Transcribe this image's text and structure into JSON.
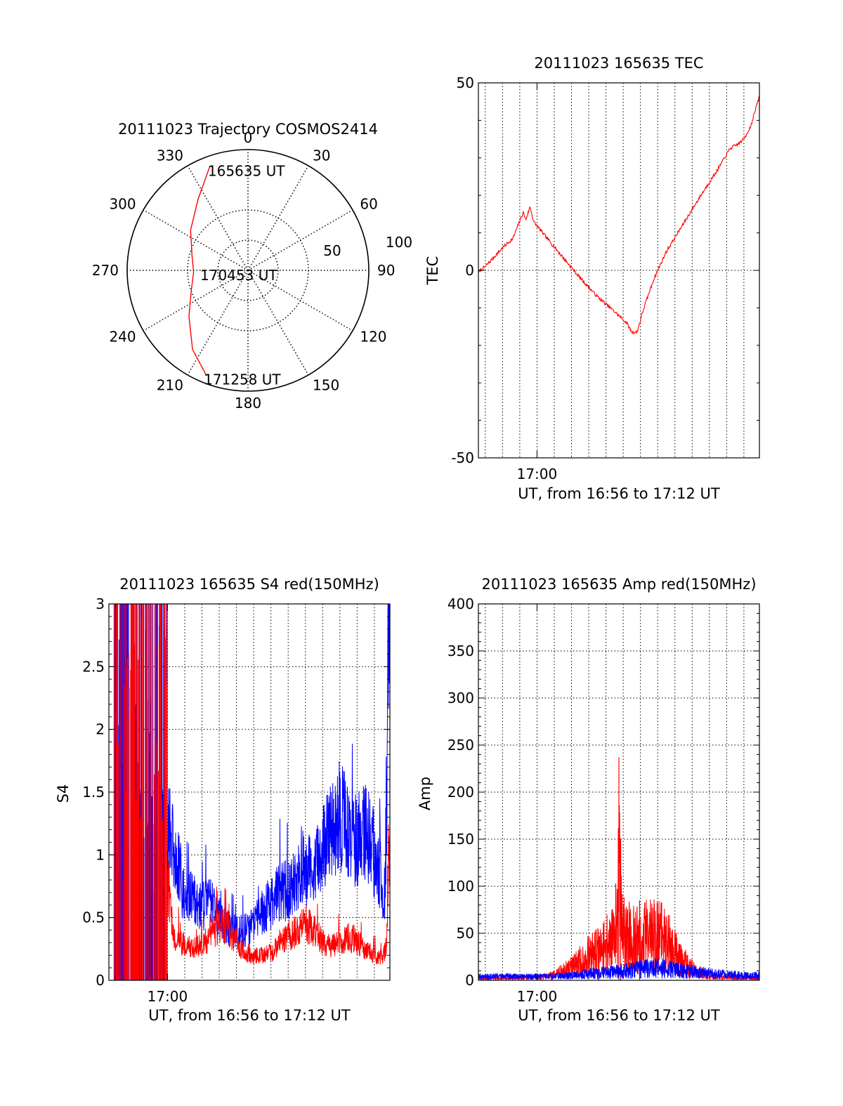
{
  "colors": {
    "red": "#ff0000",
    "blue": "#0000ff",
    "axis": "#000000",
    "grid": "#000000",
    "background": "#ffffff"
  },
  "chart_data": [
    {
      "id": "trajectory",
      "type": "polar-line",
      "title": "20111023 Trajectory COSMOS2414",
      "angle_labels": [
        "0",
        "30",
        "60",
        "90",
        "120",
        "150",
        "180",
        "210",
        "240",
        "270",
        "300",
        "330"
      ],
      "radius_labels": [
        "50",
        "100"
      ],
      "rlim": [
        0,
        100
      ],
      "direction": "clockwise, 0 at top",
      "grid": true,
      "annotations": [
        {
          "text": "165635 UT",
          "azimuth": 340,
          "r": 92
        },
        {
          "text": "170453 UT",
          "azimuth": 268,
          "r": 42
        },
        {
          "text": "171258 UT",
          "azimuth": 202,
          "r": 93
        }
      ],
      "series": [
        {
          "color": "red",
          "points": [
            {
              "az": 340,
              "r": 92
            },
            {
              "az": 325,
              "r": 72
            },
            {
              "az": 305,
              "r": 58
            },
            {
              "az": 285,
              "r": 48
            },
            {
              "az": 268,
              "r": 45
            },
            {
              "az": 250,
              "r": 50
            },
            {
              "az": 232,
              "r": 62
            },
            {
              "az": 215,
              "r": 80
            },
            {
              "az": 202,
              "r": 93
            }
          ]
        }
      ]
    },
    {
      "id": "tec",
      "type": "line",
      "title": "20111023 165635 TEC",
      "xlabel": "UT, from 16:56 to 17:12 UT",
      "ylabel": "TEC",
      "xlim": [
        56.6,
        72.9
      ],
      "ylim": [
        -50,
        50
      ],
      "y_ticks": [
        50,
        0,
        -50
      ],
      "x_ticks": [
        {
          "value": 60,
          "label": "17:00"
        }
      ],
      "grid": true,
      "series": [
        {
          "color": "red",
          "points": [
            [
              56.6,
              -0.5
            ],
            [
              57.0,
              1.0
            ],
            [
              57.5,
              3.5
            ],
            [
              58.0,
              6.0
            ],
            [
              58.6,
              8.5
            ],
            [
              58.9,
              12.0
            ],
            [
              59.2,
              15.5
            ],
            [
              59.35,
              13.5
            ],
            [
              59.6,
              17.0
            ],
            [
              59.8,
              13.0
            ],
            [
              60.5,
              9.0
            ],
            [
              61.5,
              3.5
            ],
            [
              62.5,
              -2.0
            ],
            [
              63.5,
              -7.0
            ],
            [
              64.5,
              -11.0
            ],
            [
              65.2,
              -14.0
            ],
            [
              65.5,
              -16.5
            ],
            [
              65.8,
              -16.5
            ],
            [
              66.2,
              -10.0
            ],
            [
              66.8,
              -2.0
            ],
            [
              67.5,
              5.0
            ],
            [
              68.5,
              12.5
            ],
            [
              69.5,
              20.0
            ],
            [
              70.5,
              27.0
            ],
            [
              71.2,
              32.5
            ],
            [
              71.6,
              33.5
            ],
            [
              72.0,
              35.0
            ],
            [
              72.4,
              38.5
            ],
            [
              72.9,
              46.5
            ]
          ]
        }
      ]
    },
    {
      "id": "s4",
      "type": "line",
      "title": "20111023 165635 S4 red(150MHz)",
      "xlabel": "UT, from 16:56 to 17:12 UT",
      "ylabel": "S4",
      "xlim": [
        56.6,
        72.9
      ],
      "ylim": [
        0,
        3
      ],
      "y_ticks": [
        {
          "value": 0,
          "label": "0"
        },
        {
          "value": 0.5,
          "label": "0.5"
        },
        {
          "value": 1,
          "label": "1"
        },
        {
          "value": 1.5,
          "label": "1.5"
        },
        {
          "value": 2,
          "label": "2"
        },
        {
          "value": 2.5,
          "label": "2.5"
        },
        {
          "value": 3,
          "label": "3"
        }
      ],
      "x_ticks": [
        {
          "value": 60,
          "label": "17:00"
        }
      ],
      "grid": true,
      "series": [
        {
          "color": "blue",
          "noise": [
            0.65,
            0.38,
            0.72,
            0.55,
            0.5
          ],
          "points": [
            [
              60.0,
              1.25
            ],
            [
              60.5,
              0.95
            ],
            [
              61.0,
              0.7
            ],
            [
              61.5,
              0.62
            ],
            [
              62.0,
              0.58
            ],
            [
              62.5,
              0.62
            ],
            [
              63.0,
              0.5
            ],
            [
              63.5,
              0.42
            ],
            [
              64.0,
              0.38
            ],
            [
              64.5,
              0.4
            ],
            [
              65.0,
              0.45
            ],
            [
              65.5,
              0.55
            ],
            [
              66.0,
              0.62
            ],
            [
              66.5,
              0.7
            ],
            [
              67.0,
              0.72
            ],
            [
              67.5,
              0.85
            ],
            [
              68.0,
              0.9
            ],
            [
              68.5,
              0.85
            ],
            [
              69.0,
              1.05
            ],
            [
              69.5,
              1.25
            ],
            [
              70.0,
              1.3
            ],
            [
              70.5,
              1.2
            ],
            [
              71.0,
              1.1
            ],
            [
              71.5,
              1.2
            ],
            [
              72.0,
              1.0
            ],
            [
              72.4,
              0.8
            ],
            [
              72.6,
              0.7
            ],
            [
              72.75,
              1.6
            ],
            [
              72.85,
              3.0
            ],
            [
              72.9,
              3.0
            ]
          ]
        },
        {
          "color": "red",
          "noise": [
            0.55,
            0.28,
            0.45,
            0.3,
            0.35
          ],
          "points": [
            [
              60.0,
              0.8
            ],
            [
              60.4,
              0.35
            ],
            [
              61.0,
              0.28
            ],
            [
              61.5,
              0.25
            ],
            [
              62.0,
              0.28
            ],
            [
              62.5,
              0.35
            ],
            [
              63.0,
              0.45
            ],
            [
              63.5,
              0.42
            ],
            [
              64.0,
              0.3
            ],
            [
              64.5,
              0.22
            ],
            [
              65.0,
              0.2
            ],
            [
              65.5,
              0.2
            ],
            [
              66.0,
              0.22
            ],
            [
              66.5,
              0.28
            ],
            [
              67.0,
              0.35
            ],
            [
              67.5,
              0.4
            ],
            [
              68.0,
              0.45
            ],
            [
              68.5,
              0.4
            ],
            [
              69.0,
              0.3
            ],
            [
              69.5,
              0.28
            ],
            [
              70.0,
              0.3
            ],
            [
              70.5,
              0.35
            ],
            [
              71.0,
              0.3
            ],
            [
              71.5,
              0.25
            ],
            [
              72.0,
              0.2
            ],
            [
              72.5,
              0.18
            ],
            [
              72.7,
              0.3
            ],
            [
              72.8,
              0.9
            ],
            [
              72.9,
              1.2
            ]
          ]
        }
      ]
    },
    {
      "id": "amp",
      "type": "line",
      "title": "20111023 165635 Amp red(150MHz)",
      "xlabel": "UT, from 16:56 to 17:12 UT",
      "ylabel": "Amp",
      "xlim": [
        56.6,
        72.9
      ],
      "ylim": [
        0,
        400
      ],
      "y_ticks": [
        0,
        50,
        100,
        150,
        200,
        250,
        300,
        350,
        400
      ],
      "x_ticks": [
        {
          "value": 60,
          "label": "17:00"
        }
      ],
      "grid": true,
      "series": [
        {
          "color": "red",
          "points": [
            [
              56.6,
              2
            ],
            [
              58.0,
              2
            ],
            [
              59.5,
              3
            ],
            [
              60.5,
              4
            ],
            [
              61.0,
              6
            ],
            [
              61.5,
              10
            ],
            [
              62.0,
              14
            ],
            [
              62.5,
              20
            ],
            [
              63.0,
              26
            ],
            [
              63.5,
              30
            ],
            [
              64.0,
              38
            ],
            [
              64.5,
              42
            ],
            [
              64.8,
              115
            ],
            [
              65.0,
              48
            ],
            [
              65.5,
              45
            ],
            [
              66.0,
              42
            ],
            [
              66.5,
              50
            ],
            [
              67.0,
              48
            ],
            [
              67.5,
              42
            ],
            [
              68.0,
              30
            ],
            [
              68.5,
              20
            ],
            [
              69.0,
              12
            ],
            [
              69.5,
              8
            ],
            [
              70.0,
              5
            ],
            [
              71.0,
              3
            ],
            [
              72.9,
              2
            ]
          ],
          "spikes": [
            [
              64.75,
              237
            ],
            [
              64.85,
              120
            ],
            [
              63.55,
              50
            ],
            [
              65.95,
              85
            ]
          ]
        },
        {
          "color": "blue",
          "points": [
            [
              56.6,
              4
            ],
            [
              58.0,
              4
            ],
            [
              60.0,
              4
            ],
            [
              61.0,
              4
            ],
            [
              62.0,
              5
            ],
            [
              63.0,
              7
            ],
            [
              64.0,
              8
            ],
            [
              65.0,
              10
            ],
            [
              66.0,
              12
            ],
            [
              67.0,
              13
            ],
            [
              68.0,
              11
            ],
            [
              69.0,
              9
            ],
            [
              70.0,
              7
            ],
            [
              71.0,
              6
            ],
            [
              72.0,
              5
            ],
            [
              72.9,
              5
            ]
          ]
        }
      ]
    }
  ]
}
